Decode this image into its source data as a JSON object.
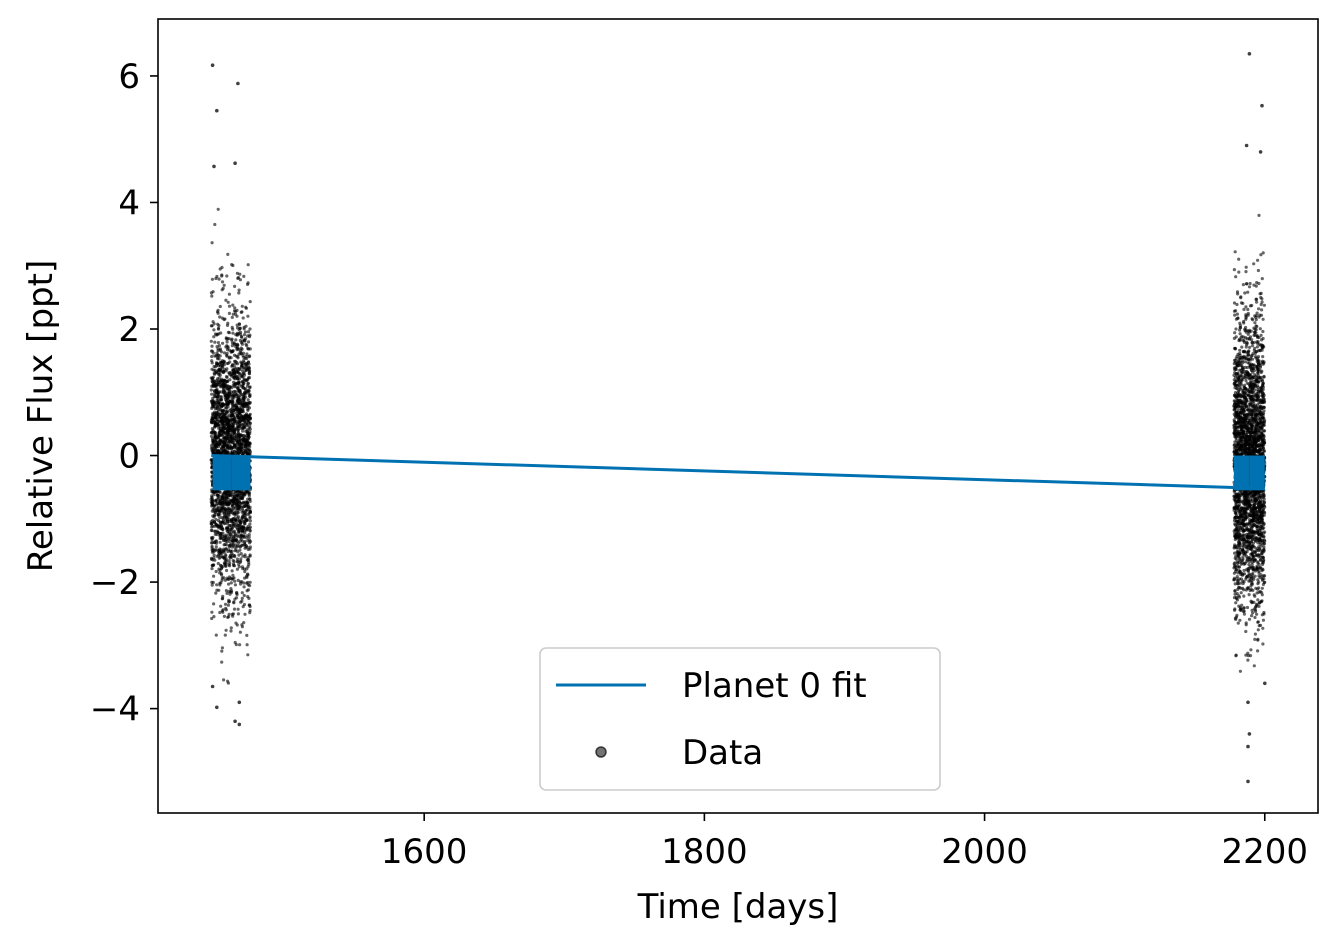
{
  "chart_data": {
    "type": "scatter",
    "xlabel": "Time [days]",
    "ylabel": "Relative Flux [ppt]",
    "xlim": [
      1410,
      2238
    ],
    "ylim": [
      -5.65,
      6.9
    ],
    "x_ticks": [
      1600,
      1800,
      2000,
      2200
    ],
    "x_tick_labels": [
      "1600",
      "1800",
      "2000",
      "2200"
    ],
    "y_ticks": [
      -4,
      -2,
      0,
      2,
      4,
      6
    ],
    "y_tick_labels": [
      "−4",
      "−2",
      "0",
      "2",
      "4",
      "6"
    ],
    "grid": false,
    "legend_position": "lower center",
    "legend": [
      {
        "label": "Planet 0 fit",
        "kind": "line"
      },
      {
        "label": "Data",
        "kind": "marker"
      }
    ],
    "series": [
      {
        "name": "Data",
        "kind": "scatter",
        "color": "#000000",
        "alpha": 0.6,
        "segments": [
          {
            "x_range": [
              1448,
              1476
            ],
            "center": 0.0,
            "scatter_std": 1.1,
            "extent": [
              -4.25,
              6.17
            ]
          },
          {
            "x_range": [
              2178,
              2200
            ],
            "center": -0.1,
            "scatter_std": 1.1,
            "extent": [
              -5.15,
              6.35
            ]
          }
        ],
        "outliers": [
          {
            "x": 1449,
            "y": 6.17
          },
          {
            "x": 1452,
            "y": 5.45
          },
          {
            "x": 1467,
            "y": 5.88
          },
          {
            "x": 1465,
            "y": 4.62
          },
          {
            "x": 1450,
            "y": 4.57
          },
          {
            "x": 1452,
            "y": -3.98
          },
          {
            "x": 1465,
            "y": -4.2
          },
          {
            "x": 1468,
            "y": -4.25
          },
          {
            "x": 1468,
            "y": -3.9
          },
          {
            "x": 1449,
            "y": -3.65
          },
          {
            "x": 2189,
            "y": 6.35
          },
          {
            "x": 2198,
            "y": 5.53
          },
          {
            "x": 2187,
            "y": 4.9
          },
          {
            "x": 2197,
            "y": 4.8
          },
          {
            "x": 2188,
            "y": -5.15
          },
          {
            "x": 2188,
            "y": -4.6
          },
          {
            "x": 2189,
            "y": -4.4
          },
          {
            "x": 2188,
            "y": -3.9
          },
          {
            "x": 2200,
            "y": -3.6
          }
        ]
      },
      {
        "name": "Planet 0 fit",
        "kind": "line",
        "color": "#0072b2",
        "points": [
          [
            1448,
            0.0
          ],
          [
            2200,
            -0.52
          ]
        ],
        "transit_blocks": [
          {
            "x_range": [
              1449,
              1476
            ],
            "y_range": [
              -0.55,
              0.0
            ]
          },
          {
            "x_range": [
              2178,
              2200
            ],
            "y_range": [
              -0.55,
              0.0
            ]
          }
        ]
      }
    ]
  }
}
